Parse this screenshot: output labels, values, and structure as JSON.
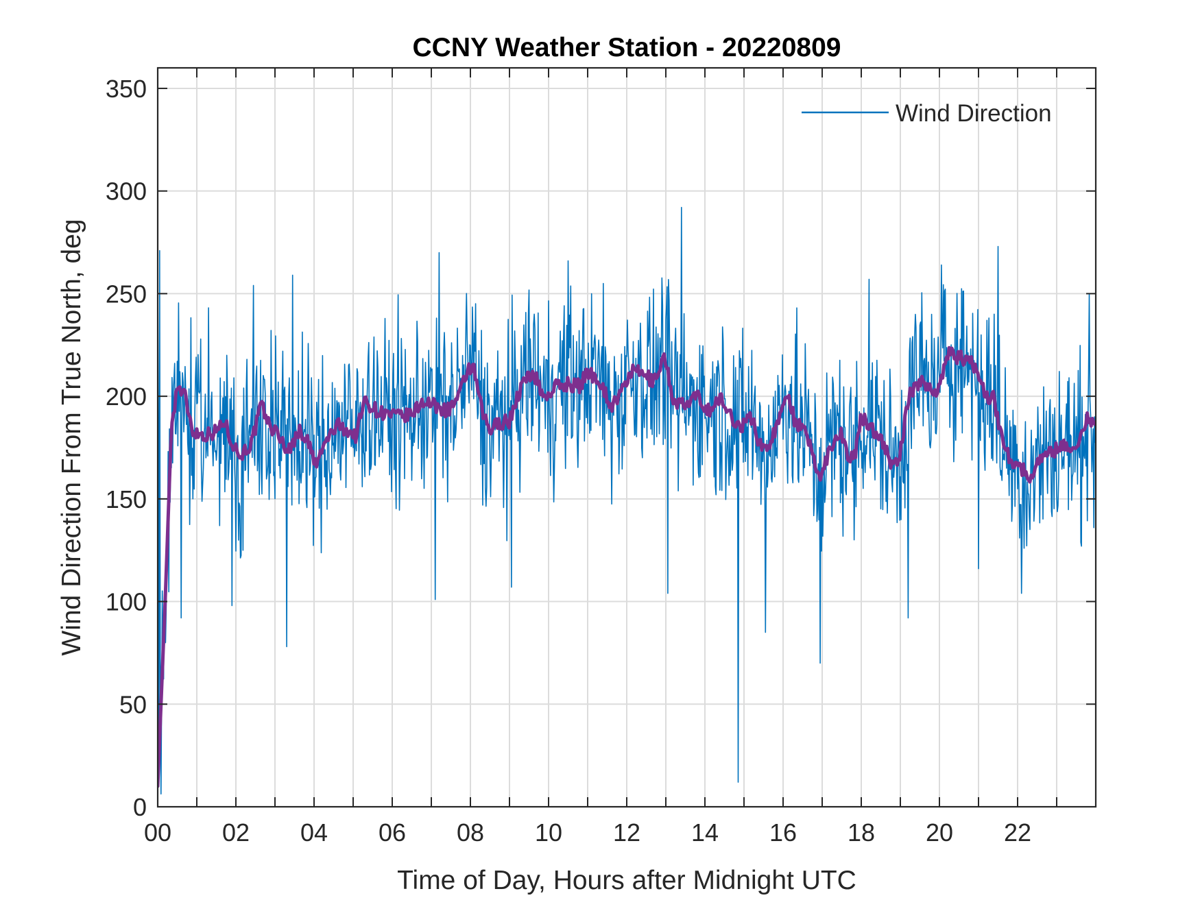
{
  "chart_data": {
    "type": "line",
    "title": "CCNY Weather Station - 20220809",
    "xlabel": "Time of Day, Hours after Midnight UTC",
    "ylabel": "Wind Direction From True North, deg",
    "xlim": [
      0,
      24
    ],
    "ylim": [
      0,
      360
    ],
    "grid": true,
    "legend_position": "top-right",
    "x_ticks": [
      0,
      2,
      4,
      6,
      8,
      10,
      12,
      14,
      16,
      18,
      20,
      22
    ],
    "x_tick_labels": [
      "00",
      "02",
      "04",
      "06",
      "08",
      "10",
      "12",
      "14",
      "16",
      "18",
      "20",
      "22"
    ],
    "y_ticks": [
      0,
      50,
      100,
      150,
      200,
      250,
      300,
      350
    ],
    "y_tick_labels": [
      "0",
      "50",
      "100",
      "150",
      "200",
      "250",
      "300",
      "350"
    ],
    "colors": {
      "raw": "#0072BD",
      "smoothed": "#7E2F8E",
      "axes": "#262626",
      "grid": "#DCDCDC"
    },
    "series": [
      {
        "name": "Wind Direction",
        "in_legend": true,
        "style": "thin",
        "band_description": "1-minute samples fluctuating roughly ±40 deg around the moving average, with spikes to ~292 (13.4 h) and ~12 (14.85 h)",
        "center_follows": "smoothed",
        "noise_amplitude_deg": 28,
        "spikes": [
          {
            "x": 0.05,
            "y": 271
          },
          {
            "x": 0.6,
            "y": 92
          },
          {
            "x": 1.9,
            "y": 98
          },
          {
            "x": 2.45,
            "y": 254
          },
          {
            "x": 3.3,
            "y": 78
          },
          {
            "x": 3.45,
            "y": 259
          },
          {
            "x": 7.1,
            "y": 101
          },
          {
            "x": 7.2,
            "y": 270
          },
          {
            "x": 9.05,
            "y": 107
          },
          {
            "x": 10.5,
            "y": 266
          },
          {
            "x": 13.05,
            "y": 104
          },
          {
            "x": 13.4,
            "y": 292
          },
          {
            "x": 14.85,
            "y": 12
          },
          {
            "x": 15.55,
            "y": 85
          },
          {
            "x": 16.95,
            "y": 70
          },
          {
            "x": 18.2,
            "y": 257
          },
          {
            "x": 19.2,
            "y": 92
          },
          {
            "x": 20.05,
            "y": 264
          },
          {
            "x": 21.0,
            "y": 116
          },
          {
            "x": 21.5,
            "y": 273
          },
          {
            "x": 22.1,
            "y": 104
          },
          {
            "x": 23.95,
            "y": 136
          }
        ]
      },
      {
        "name": "Moving Average",
        "in_legend": false,
        "style": "thick",
        "x": [
          0,
          0.2,
          0.35,
          0.5,
          0.7,
          0.9,
          1.2,
          1.5,
          1.7,
          1.9,
          2.1,
          2.4,
          2.65,
          2.85,
          3.1,
          3.35,
          3.6,
          3.8,
          4.05,
          4.3,
          4.6,
          4.9,
          5.05,
          5.3,
          5.6,
          5.9,
          6.2,
          6.5,
          6.8,
          7.1,
          7.4,
          7.7,
          7.95,
          8.1,
          8.3,
          8.5,
          8.7,
          9.0,
          9.3,
          9.6,
          9.9,
          10.2,
          10.5,
          10.8,
          11.0,
          11.3,
          11.6,
          11.85,
          12.1,
          12.4,
          12.7,
          12.95,
          13.2,
          13.5,
          13.8,
          14.1,
          14.4,
          14.6,
          14.9,
          15.2,
          15.4,
          15.6,
          15.9,
          16.1,
          16.3,
          16.6,
          16.95,
          17.2,
          17.45,
          17.7,
          17.85,
          18.0,
          18.25,
          18.5,
          18.8,
          19.0,
          19.2,
          19.5,
          19.8,
          20.0,
          20.2,
          20.5,
          20.9,
          21.2,
          21.4,
          21.55,
          21.8,
          22.05,
          22.3,
          22.6,
          22.9,
          23.2,
          23.5,
          23.8,
          24
        ],
        "y": [
          10,
          105,
          185,
          205,
          200,
          183,
          181,
          183,
          188,
          178,
          171,
          177,
          196,
          186,
          181,
          173,
          183,
          180,
          166,
          178,
          186,
          183,
          180,
          198,
          193,
          191,
          190,
          191,
          198,
          195,
          193,
          199,
          214,
          212,
          192,
          183,
          187,
          188,
          205,
          212,
          199,
          205,
          206,
          205,
          212,
          208,
          195,
          201,
          212,
          211,
          207,
          220,
          198,
          195,
          200,
          193,
          199,
          192,
          185,
          190,
          176,
          175,
          188,
          204,
          188,
          181,
          160,
          175,
          183,
          170,
          171,
          190,
          185,
          180,
          165,
          172,
          199,
          208,
          203,
          204,
          221,
          219,
          215,
          200,
          199,
          183,
          170,
          166,
          160,
          171,
          173,
          177,
          173,
          191,
          184
        ]
      }
    ]
  }
}
